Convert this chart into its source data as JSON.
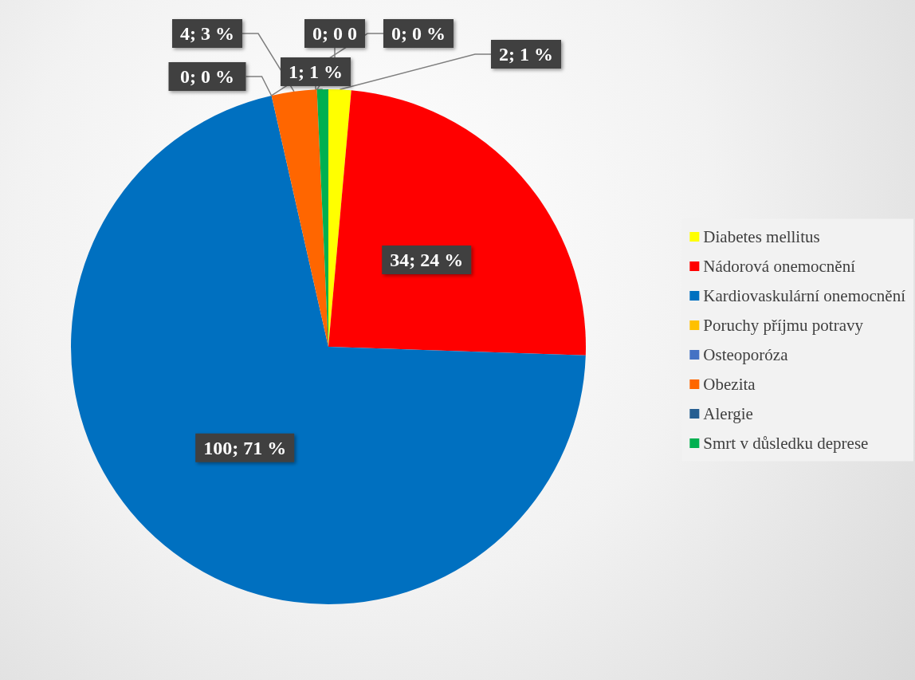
{
  "chart_data": {
    "type": "pie",
    "categories": [
      "Diabetes mellitus",
      "Nádorová onemocnění",
      "Kardiovaskulární onemocnění",
      "Poruchy příjmu potravy",
      "Osteoporóza",
      "Obezita",
      "Alergie",
      "Smrt v důsledku deprese"
    ],
    "values": [
      2,
      34,
      100,
      0,
      0,
      4,
      0,
      1
    ],
    "value_labels": [
      "2; 1 %",
      "34; 24 %",
      "100; 71 %",
      "0; 0 %",
      "0; 0 %",
      "4; 3 %",
      "0; 0 0",
      "1; 1 %"
    ],
    "colors": [
      "#ffff00",
      "#ff0000",
      "#0070c0",
      "#ffc000",
      "#4472c4",
      "#ff6600",
      "#255e91",
      "#00b050"
    ],
    "legend": "right"
  }
}
